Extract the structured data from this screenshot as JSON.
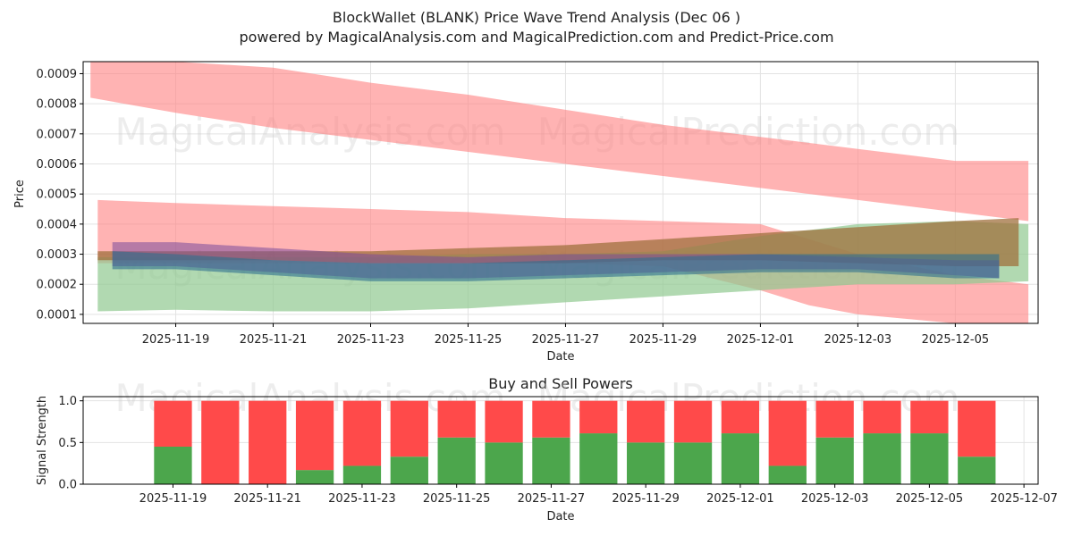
{
  "chart_data": [
    {
      "type": "area",
      "title": "BlockWallet (BLANK) Price Wave Trend Analysis (Dec 06 )",
      "subtitle": "powered by MagicalAnalysis.com and MagicalPrediction.com and Predict-Price.com",
      "xlabel": "Date",
      "ylabel": "Price",
      "ylim": [
        7e-05,
        0.00094
      ],
      "grid": true,
      "y_ticks": [
        "0.0001",
        "0.0002",
        "0.0003",
        "0.0004",
        "0.0005",
        "0.0006",
        "0.0007",
        "0.0008",
        "0.0009"
      ],
      "x_ticks": [
        "2025-11-19",
        "2025-11-21",
        "2025-11-23",
        "2025-11-25",
        "2025-11-27",
        "2025-11-29",
        "2025-12-01",
        "2025-12-03",
        "2025-12-05"
      ],
      "x_domain_days": [
        -1.9,
        17.7
      ],
      "bands": [
        {
          "name": "upper red band",
          "color": "#ff8080",
          "points": [
            [
              -1.75,
              0.00082,
              0.00094
            ],
            [
              0,
              0.00077,
              0.00094
            ],
            [
              2,
              0.00072,
              0.00092
            ],
            [
              4,
              0.00068,
              0.00087
            ],
            [
              6,
              0.00064,
              0.00083
            ],
            [
              8,
              0.0006,
              0.00078
            ],
            [
              10,
              0.00056,
              0.00073
            ],
            [
              12,
              0.00052,
              0.00069
            ],
            [
              14,
              0.00048,
              0.00065
            ],
            [
              16,
              0.00044,
              0.00061
            ],
            [
              17.5,
              0.00041,
              0.00061
            ]
          ]
        },
        {
          "name": "lower red band",
          "color": "#ff8080",
          "points": [
            [
              -1.6,
              0.00027,
              0.00048
            ],
            [
              0,
              0.00027,
              0.00047
            ],
            [
              2,
              0.00027,
              0.00046
            ],
            [
              4,
              0.00027,
              0.00045
            ],
            [
              6,
              0.00027,
              0.00044
            ],
            [
              8,
              0.00027,
              0.00042
            ],
            [
              10,
              0.00026,
              0.00041
            ],
            [
              12,
              0.00018,
              0.0004
            ],
            [
              13,
              0.00013,
              0.00035
            ],
            [
              14,
              0.0001,
              0.0003
            ],
            [
              16,
              7e-05,
              0.00023
            ],
            [
              17.5,
              7e-05,
              0.0002
            ]
          ]
        },
        {
          "name": "green band",
          "color": "#90c990",
          "points": [
            [
              -1.6,
              0.00011,
              0.00029
            ],
            [
              0,
              0.000115,
              0.00029
            ],
            [
              2,
              0.00011,
              0.00029
            ],
            [
              4,
              0.00011,
              0.00029
            ],
            [
              6,
              0.00012,
              0.0003
            ],
            [
              8,
              0.00014,
              0.0003
            ],
            [
              10,
              0.00016,
              0.00031
            ],
            [
              12,
              0.00018,
              0.00036
            ],
            [
              14,
              0.0002,
              0.0004
            ],
            [
              16,
              0.0002,
              0.00041
            ],
            [
              17.5,
              0.00021,
              0.0004
            ]
          ]
        },
        {
          "name": "brown trend band",
          "color": "#a0703e",
          "points": [
            [
              -1.6,
              0.00028,
              0.00031
            ],
            [
              0,
              0.00028,
              0.00031
            ],
            [
              2,
              0.00028,
              0.00031
            ],
            [
              4,
              0.00027,
              0.00031
            ],
            [
              6,
              0.00027,
              0.00032
            ],
            [
              8,
              0.00027,
              0.00033
            ],
            [
              10,
              0.00028,
              0.00035
            ],
            [
              12,
              0.00028,
              0.00037
            ],
            [
              14,
              0.00027,
              0.00039
            ],
            [
              16,
              0.00026,
              0.00041
            ],
            [
              17.3,
              0.00026,
              0.00042
            ]
          ]
        },
        {
          "name": "purple wave band",
          "color": "#7a4a9a",
          "points": [
            [
              -1.3,
              0.00026,
              0.00034
            ],
            [
              0,
              0.00026,
              0.00034
            ],
            [
              2,
              0.00024,
              0.00032
            ],
            [
              4,
              0.00022,
              0.0003
            ],
            [
              6,
              0.00022,
              0.00029
            ],
            [
              8,
              0.00023,
              0.0003
            ],
            [
              10,
              0.00024,
              0.0003
            ],
            [
              12,
              0.00025,
              0.0003
            ],
            [
              14,
              0.00025,
              0.00029
            ],
            [
              16,
              0.00023,
              0.00028
            ],
            [
              16.9,
              0.00022,
              0.00028
            ]
          ]
        },
        {
          "name": "teal wave band",
          "color": "#2f6f8f",
          "points": [
            [
              -1.3,
              0.00025,
              0.00031
            ],
            [
              0,
              0.00025,
              0.0003
            ],
            [
              2,
              0.00023,
              0.00028
            ],
            [
              4,
              0.00021,
              0.00027
            ],
            [
              6,
              0.00021,
              0.00027
            ],
            [
              8,
              0.00022,
              0.00028
            ],
            [
              10,
              0.00023,
              0.00029
            ],
            [
              12,
              0.00024,
              0.0003
            ],
            [
              14,
              0.00024,
              0.0003
            ],
            [
              16,
              0.00022,
              0.0003
            ],
            [
              16.9,
              0.00022,
              0.0003
            ]
          ]
        }
      ],
      "watermarks": [
        "MagicalAnalysis.com",
        "MagicalPrediction.com"
      ]
    },
    {
      "type": "bar",
      "title": "Buy and Sell Powers",
      "xlabel": "Date",
      "ylabel": "Signal Strength",
      "ylim": [
        0,
        1.05
      ],
      "grid": true,
      "y_ticks": [
        "0.0",
        "0.5",
        "1.0"
      ],
      "x_ticks": [
        "2025-11-19",
        "2025-11-21",
        "2025-11-23",
        "2025-11-25",
        "2025-11-27",
        "2025-11-29",
        "2025-12-01",
        "2025-12-03",
        "2025-12-05",
        "2025-12-07"
      ],
      "x_domain_days": [
        -1.9,
        18.3
      ],
      "categories": [
        "2025-11-19",
        "2025-11-20",
        "2025-11-21",
        "2025-11-22",
        "2025-11-23",
        "2025-11-24",
        "2025-11-25",
        "2025-11-26",
        "2025-11-27",
        "2025-11-28",
        "2025-11-29",
        "2025-11-30",
        "2025-12-01",
        "2025-12-02",
        "2025-12-03",
        "2025-12-04",
        "2025-12-05",
        "2025-12-06"
      ],
      "series": [
        {
          "name": "Buy",
          "color": "#4ca64c",
          "values": [
            0.45,
            0.0,
            0.0,
            0.17,
            0.22,
            0.33,
            0.56,
            0.5,
            0.56,
            0.61,
            0.5,
            0.5,
            0.61,
            0.22,
            0.56,
            0.61,
            0.61,
            0.33
          ]
        },
        {
          "name": "Sell",
          "color": "#ff4a4a",
          "values": [
            0.55,
            1.0,
            1.0,
            0.83,
            0.78,
            0.67,
            0.44,
            0.5,
            0.44,
            0.39,
            0.5,
            0.5,
            0.39,
            0.78,
            0.44,
            0.39,
            0.39,
            0.67
          ]
        }
      ],
      "watermarks": [
        "MagicalAnalysis.com",
        "MagicalPrediction.com"
      ]
    }
  ]
}
